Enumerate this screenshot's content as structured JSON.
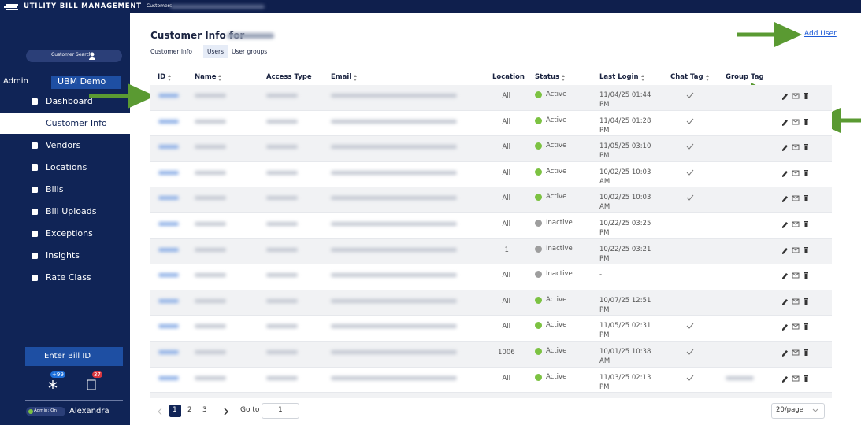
{
  "sidebar": {
    "brand": "UTILITY BILL MANAGEMENT",
    "customer_search": "Customer Search",
    "role": "Admin",
    "account": "UBM Demo",
    "nav": [
      "Dashboard",
      "Customer Info",
      "Vendors",
      "Locations",
      "Bills",
      "Bill Uploads",
      "Exceptions",
      "Insights",
      "Rate Class"
    ],
    "active_nav": 1,
    "bill_search": "Enter Bill ID",
    "badges": [
      "+99",
      37
    ],
    "admin_toggle": "Admin: On",
    "user": "Alexandra"
  },
  "breadcrumb": "Customers",
  "page": {
    "title": "Customer Info for",
    "tabs": [
      "Customer Info",
      "Users",
      "User groups"
    ],
    "active_tab": 1,
    "add_user": "Add User"
  },
  "table": {
    "columns": [
      {
        "label": "ID",
        "sortable": true
      },
      {
        "label": "Name",
        "sortable": true
      },
      {
        "label": "Access Type",
        "sortable": false
      },
      {
        "label": "Email",
        "sortable": true
      },
      {
        "label": "Location",
        "sortable": false
      },
      {
        "label": "Status",
        "sortable": true
      },
      {
        "label": "Last Login",
        "sortable": true
      },
      {
        "label": "Chat Tag",
        "sortable": true
      },
      {
        "label": "Group Tag",
        "sortable": false
      }
    ],
    "rows": [
      {
        "location": "All",
        "status": "Active",
        "last_login": "11/04/25 01:44 PM",
        "chat_tag": true
      },
      {
        "location": "All",
        "status": "Active",
        "last_login": "11/04/25 01:28 PM",
        "chat_tag": true
      },
      {
        "location": "All",
        "status": "Active",
        "last_login": "11/05/25 03:10 PM",
        "chat_tag": true
      },
      {
        "location": "All",
        "status": "Active",
        "last_login": "10/02/25 10:03 AM",
        "chat_tag": true
      },
      {
        "location": "All",
        "status": "Active",
        "last_login": "10/02/25 10:03 AM",
        "chat_tag": true
      },
      {
        "location": "All",
        "status": "Inactive",
        "last_login": "10/22/25 03:25 PM",
        "chat_tag": false
      },
      {
        "location": "1",
        "status": "Inactive",
        "last_login": "10/22/25 03:21 PM",
        "chat_tag": false
      },
      {
        "location": "All",
        "status": "Inactive",
        "last_login": "-",
        "chat_tag": false
      },
      {
        "location": "All",
        "status": "Active",
        "last_login": "10/07/25 12:51 PM",
        "chat_tag": false
      },
      {
        "location": "All",
        "status": "Active",
        "last_login": "11/05/25 02:31 PM",
        "chat_tag": true
      },
      {
        "location": "1006",
        "status": "Active",
        "last_login": "10/01/25 10:38 AM",
        "chat_tag": true
      },
      {
        "location": "All",
        "status": "Active",
        "last_login": "11/03/25 02:13 PM",
        "chat_tag": true
      }
    ]
  },
  "status_colors": {
    "Active": "#7cc242",
    "Inactive": "#9e9e9e"
  },
  "pagination": {
    "pages": [
      1,
      2,
      3
    ],
    "current": 1,
    "go_to": "Go to",
    "go_to_value": 1,
    "page_size": "20/page"
  }
}
